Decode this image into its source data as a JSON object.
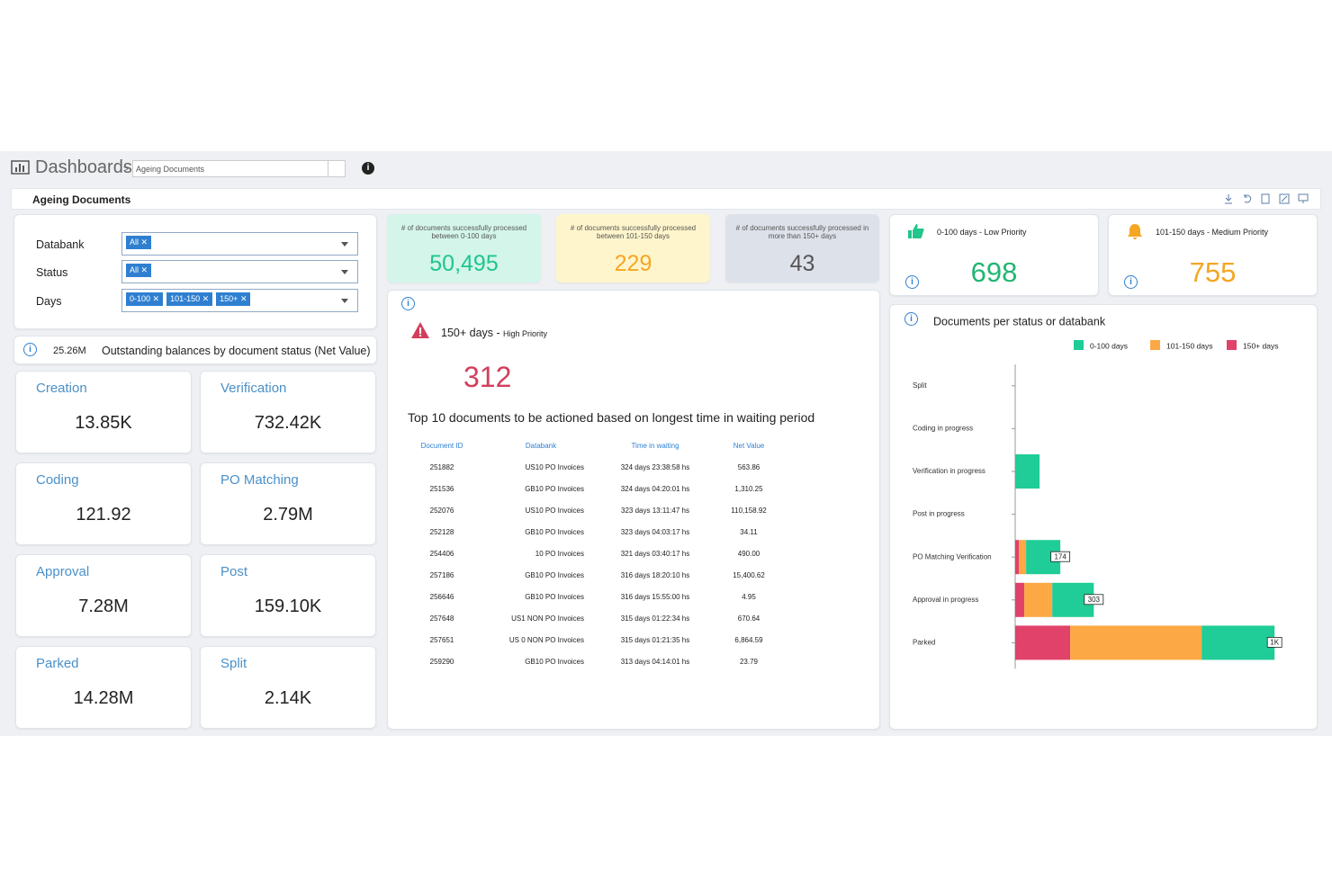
{
  "header": {
    "app": "Dashboards",
    "breadcrumb_separator": ">",
    "dashboard_select": "Ageing Documents"
  },
  "page_title": "Ageing Documents",
  "filters": [
    {
      "label": "Databank",
      "tags": [
        "All"
      ]
    },
    {
      "label": "Status",
      "tags": [
        "All"
      ]
    },
    {
      "label": "Days",
      "tags": [
        "0-100",
        "101-150",
        "150+"
      ]
    }
  ],
  "outstanding": {
    "total": "25.26M",
    "title": "Outstanding balances by document status (Net Value)"
  },
  "status_cards": [
    {
      "label": "Creation",
      "value": "13.85K"
    },
    {
      "label": "Verification",
      "value": "732.42K"
    },
    {
      "label": "Coding",
      "value": "121.92"
    },
    {
      "label": "PO Matching",
      "value": "2.79M"
    },
    {
      "label": "Approval",
      "value": "7.28M"
    },
    {
      "label": "Post",
      "value": "159.10K"
    },
    {
      "label": "Parked",
      "value": "14.28M"
    },
    {
      "label": "Split",
      "value": "2.14K"
    }
  ],
  "kpis": [
    {
      "caption": "# of documents successfully processed between 0-100 days",
      "value": "50,495"
    },
    {
      "caption": "# of documents successfully processed between 101-150 days",
      "value": "229"
    },
    {
      "caption": "# of documents successfully processed in more than 150+ days",
      "value": "43"
    }
  ],
  "priority_cards": [
    {
      "title": "0-100 days - Low Priority",
      "value": "698"
    },
    {
      "title": "101-150 days - Medium Priority",
      "value": "755"
    }
  ],
  "high_priority": {
    "title": "150+ days -",
    "subtitle": "High Priority",
    "value": "312"
  },
  "table": {
    "title": "Top 10 documents to be actioned based on longest time in waiting period",
    "columns": [
      "Document ID",
      "Databank",
      "Time in waiting",
      "Net Value"
    ],
    "rows": [
      [
        "251882",
        "US10 PO Invoices",
        "324 days 23:38:58 hs",
        "563.86"
      ],
      [
        "251536",
        "GB10 PO Invoices",
        "324 days 04:20:01 hs",
        "1,310.25"
      ],
      [
        "252076",
        "US10 PO Invoices",
        "323 days 13:11:47 hs",
        "110,158.92"
      ],
      [
        "252128",
        "GB10 PO Invoices",
        "323 days 04:03:17 hs",
        "34.11"
      ],
      [
        "254406",
        "10 PO Invoices",
        "321 days 03:40:17 hs",
        "490.00"
      ],
      [
        "257186",
        "GB10 PO Invoices",
        "316 days 18:20:10 hs",
        "15,400.62"
      ],
      [
        "256646",
        "GB10 PO Invoices",
        "316 days 15:55:00 hs",
        "4.95"
      ],
      [
        "257648",
        "US1 NON PO Invoices",
        "315 days 01:22:34 hs",
        "670.64"
      ],
      [
        "257651",
        "US 0 NON PO Invoices",
        "315 days 01:21:35 hs",
        "6,864.59"
      ],
      [
        "259290",
        "GB10 PO Invoices",
        "313 days 04:14:01 hs",
        "23.79"
      ]
    ]
  },
  "chart_data": {
    "type": "stacked_hbar",
    "title": "Documents per status or databank",
    "categories": [
      "Split",
      "Coding in progress",
      "Verification in progress",
      "Post in progress",
      "PO Matching Verification",
      "Approval in progress",
      "Parked"
    ],
    "series": [
      {
        "name": "150+ days",
        "color": "#e0426a",
        "values": [
          0,
          0,
          0,
          0,
          14,
          35,
          212
        ]
      },
      {
        "name": "101-150 days",
        "color": "#fca845",
        "values": [
          0,
          0,
          0,
          0,
          28,
          108,
          507
        ]
      },
      {
        "name": "0-100 days",
        "color": "#20cc97",
        "values": [
          0,
          0,
          94,
          0,
          132,
          160,
          281
        ]
      }
    ],
    "legend_order": [
      2,
      1,
      0
    ],
    "bar_labels": [
      null,
      null,
      null,
      null,
      {
        "value": 174,
        "label": "174"
      },
      {
        "value": 303,
        "label": "303"
      },
      {
        "value": 1000,
        "label": "1K"
      }
    ],
    "xlim": [
      0,
      1100
    ]
  }
}
